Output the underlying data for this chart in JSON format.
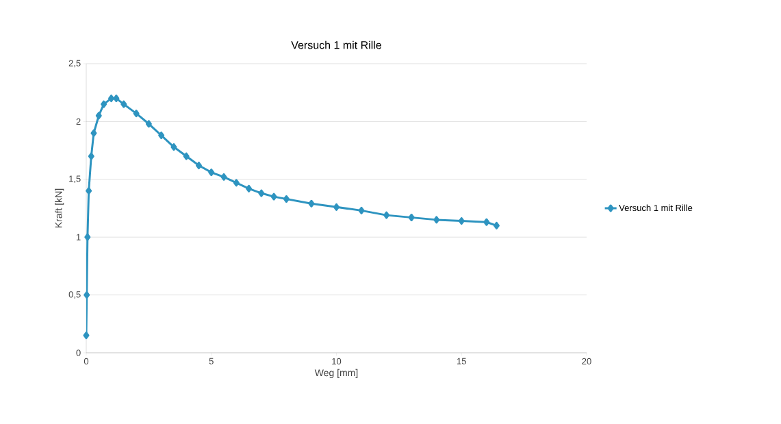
{
  "chart_data": {
    "type": "line",
    "title": "Versuch 1 mit Rille",
    "xlabel": "Weg [mm]",
    "ylabel": "Kraft [kN]",
    "xlim": [
      0,
      20
    ],
    "xticks": [
      0,
      5,
      10,
      15,
      20
    ],
    "ylim": [
      0,
      2.5
    ],
    "yticks": [
      0,
      {
        "value": 0.5,
        "label": "0,5"
      },
      1,
      {
        "value": 1.5,
        "label": "1,5"
      },
      2,
      {
        "value": 2.5,
        "label": "2,5"
      }
    ],
    "grid": "y",
    "legend": "right",
    "marker": "diamond",
    "line_style": "solid",
    "series": [
      {
        "name": "Versuch 1 mit Rille",
        "color": "#2e94c0",
        "x": [
          0,
          0.02,
          0.05,
          0.1,
          0.2,
          0.3,
          0.5,
          0.7,
          1.0,
          1.2,
          1.5,
          2,
          2.5,
          3,
          3.5,
          4,
          4.5,
          5,
          5.5,
          6,
          6.5,
          7,
          7.5,
          8,
          9,
          10,
          11,
          12,
          13,
          14,
          15,
          16,
          16.4
        ],
        "values": [
          0.15,
          0.5,
          1.0,
          1.4,
          1.7,
          1.9,
          2.05,
          2.15,
          2.2,
          2.2,
          2.15,
          2.07,
          1.98,
          1.88,
          1.78,
          1.7,
          1.62,
          1.56,
          1.52,
          1.47,
          1.42,
          1.38,
          1.35,
          1.33,
          1.29,
          1.26,
          1.23,
          1.19,
          1.17,
          1.15,
          1.14,
          1.13,
          1.1
        ]
      }
    ]
  }
}
